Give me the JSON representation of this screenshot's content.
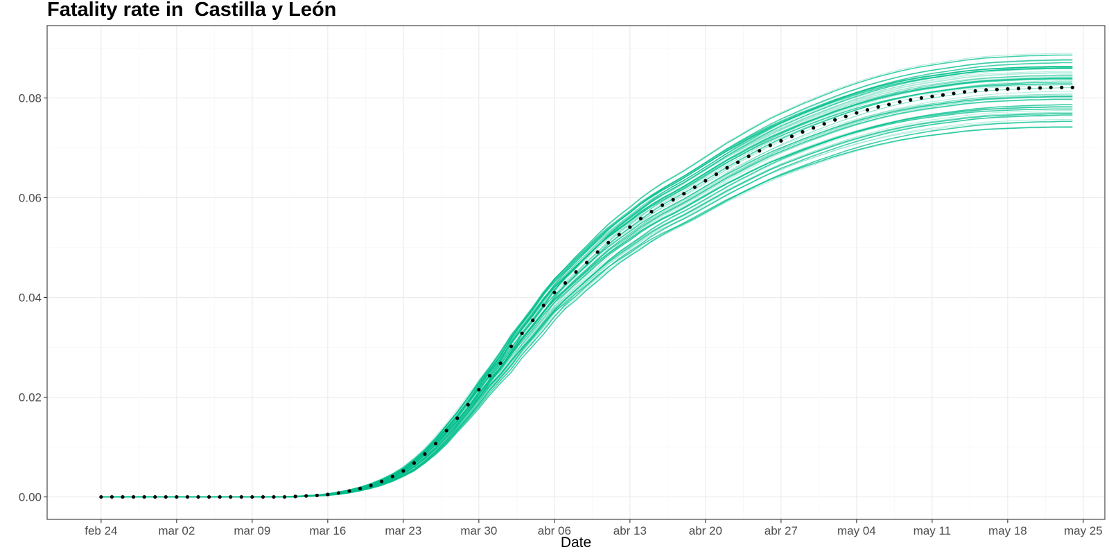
{
  "chart_data": {
    "type": "line",
    "title": "Fatality rate in  Castilla y León",
    "xlabel": "Date",
    "ylabel": "",
    "x_axis": {
      "type": "date",
      "range": [
        "2020-02-19",
        "2020-05-27"
      ],
      "ticks": [
        {
          "date": "2020-02-24",
          "label": "feb 24"
        },
        {
          "date": "2020-03-02",
          "label": "mar 02"
        },
        {
          "date": "2020-03-09",
          "label": "mar 09"
        },
        {
          "date": "2020-03-16",
          "label": "mar 16"
        },
        {
          "date": "2020-03-23",
          "label": "mar 23"
        },
        {
          "date": "2020-03-30",
          "label": "mar 30"
        },
        {
          "date": "2020-04-06",
          "label": "abr 06"
        },
        {
          "date": "2020-04-13",
          "label": "abr 13"
        },
        {
          "date": "2020-04-20",
          "label": "abr 20"
        },
        {
          "date": "2020-04-27",
          "label": "abr 27"
        },
        {
          "date": "2020-05-04",
          "label": "may 04"
        },
        {
          "date": "2020-05-11",
          "label": "may 11"
        },
        {
          "date": "2020-05-18",
          "label": "may 18"
        },
        {
          "date": "2020-05-25",
          "label": "may 25"
        }
      ]
    },
    "y_axis": {
      "range": [
        -0.0045,
        0.0945
      ],
      "ticks": [
        0.0,
        0.02,
        0.04,
        0.06,
        0.08
      ],
      "tick_labels": [
        "0.00",
        "0.02",
        "0.04",
        "0.06",
        "0.08"
      ]
    },
    "grid": true,
    "legend": "none",
    "colors": {
      "observed_points": "#000000",
      "simulations": "#00BF8C",
      "grid_major": "#ebebeb",
      "grid_minor": "#f5f5f5",
      "panel_border": "#333333"
    },
    "simulations": {
      "count": 60,
      "description_visible": false,
      "final_value_range": [
        0.074,
        0.089
      ]
    },
    "series": [
      {
        "type": "points",
        "x": [
          "2020-02-24",
          "2020-02-25",
          "2020-02-26",
          "2020-02-27",
          "2020-02-28",
          "2020-02-29",
          "2020-03-01",
          "2020-03-02",
          "2020-03-03",
          "2020-03-04",
          "2020-03-05",
          "2020-03-06",
          "2020-03-07",
          "2020-03-08",
          "2020-03-09",
          "2020-03-10",
          "2020-03-11",
          "2020-03-12",
          "2020-03-13",
          "2020-03-14",
          "2020-03-15",
          "2020-03-16",
          "2020-03-17",
          "2020-03-18",
          "2020-03-19",
          "2020-03-20",
          "2020-03-21",
          "2020-03-22",
          "2020-03-23",
          "2020-03-24",
          "2020-03-25",
          "2020-03-26",
          "2020-03-27",
          "2020-03-28",
          "2020-03-29",
          "2020-03-30",
          "2020-03-31",
          "2020-04-01",
          "2020-04-02",
          "2020-04-03",
          "2020-04-04",
          "2020-04-05",
          "2020-04-06",
          "2020-04-07",
          "2020-04-08",
          "2020-04-09",
          "2020-04-10",
          "2020-04-11",
          "2020-04-12",
          "2020-04-13",
          "2020-04-14",
          "2020-04-15",
          "2020-04-16",
          "2020-04-17",
          "2020-04-18",
          "2020-04-19",
          "2020-04-20",
          "2020-04-21",
          "2020-04-22",
          "2020-04-23",
          "2020-04-24",
          "2020-04-25",
          "2020-04-26",
          "2020-04-27",
          "2020-04-28",
          "2020-04-29",
          "2020-04-30",
          "2020-05-01",
          "2020-05-02",
          "2020-05-03",
          "2020-05-04",
          "2020-05-05",
          "2020-05-06",
          "2020-05-07",
          "2020-05-08",
          "2020-05-09",
          "2020-05-10",
          "2020-05-11",
          "2020-05-12",
          "2020-05-13",
          "2020-05-14",
          "2020-05-15",
          "2020-05-16",
          "2020-05-17",
          "2020-05-18",
          "2020-05-19",
          "2020-05-20",
          "2020-05-21",
          "2020-05-22",
          "2020-05-23",
          "2020-05-24"
        ],
        "values": [
          0.0,
          0.0,
          0.0,
          0.0,
          0.0,
          0.0,
          0.0,
          0.0,
          0.0,
          0.0,
          0.0,
          0.0,
          0.0,
          0.0,
          0.0,
          0.0,
          0.0,
          0.0,
          0.0001,
          0.0002,
          0.0003,
          0.0005,
          0.0008,
          0.0012,
          0.0017,
          0.0023,
          0.0031,
          0.0041,
          0.0052,
          0.0068,
          0.0086,
          0.0107,
          0.0133,
          0.0158,
          0.0185,
          0.0215,
          0.0243,
          0.0268,
          0.0302,
          0.0328,
          0.0354,
          0.0384,
          0.041,
          0.0429,
          0.0451,
          0.047,
          0.0491,
          0.051,
          0.0526,
          0.0541,
          0.0558,
          0.0572,
          0.0585,
          0.0596,
          0.0608,
          0.0621,
          0.0634,
          0.0647,
          0.066,
          0.0671,
          0.0683,
          0.0694,
          0.0705,
          0.0714,
          0.0723,
          0.0732,
          0.074,
          0.0748,
          0.0756,
          0.0763,
          0.077,
          0.0776,
          0.0782,
          0.0787,
          0.0792,
          0.0796,
          0.08,
          0.0803,
          0.0806,
          0.0809,
          0.0812,
          0.0814,
          0.0816,
          0.0817,
          0.0818,
          0.0819,
          0.082,
          0.082,
          0.0821,
          0.0821,
          0.0821
        ]
      }
    ]
  }
}
